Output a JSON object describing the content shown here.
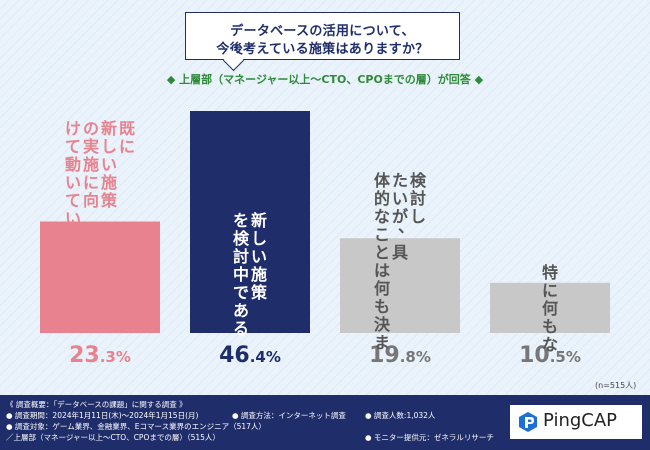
{
  "question": {
    "line1": "データベースの活用について、",
    "line2": "今後考えている施策はありますか？"
  },
  "respondent_label": "◆ 上層部（マネージャー以上〜CTO、CPOまでの層）が回答 ◆",
  "n_note": "(n=515人)",
  "chart_data": {
    "type": "bar",
    "categories": [
      "既に新しい施策の実施に向けて動いている",
      "新しい施策を検討中である",
      "検討したいが、具体的なことは何も決まっていない",
      "特に何もない"
    ],
    "values": [
      23.3,
      46.4,
      19.8,
      10.5
    ],
    "value_labels": [
      "23.3%",
      "46.4%",
      "19.8%",
      "10.5%"
    ],
    "bar_colors": [
      "#e8828e",
      "#1f2d6b",
      "#c8c8c8",
      "#c8c8c8"
    ],
    "label_colors": [
      "#e8828e",
      "#1f2d6b",
      "#777777",
      "#777777"
    ],
    "category_text_colors": [
      "#e8828e",
      "#ffffff",
      "#555555",
      "#555555"
    ],
    "ylim": [
      0,
      46.4
    ],
    "unit": "%"
  },
  "footer": {
    "line1": "《 調査概要：「データベースの課題」に関する調査 》",
    "line2a": "● 調査期間：2024年1月11日(木)〜2024年1月15日(月)",
    "line2b": "● 調査方法：インターネット調査",
    "line2c": "● 調査人数:1,032人",
    "line3a": "● 調査対象：ゲーム業界、金融業界、Eコマース業界のエンジニア（517人）",
    "line4a": "／上層部（マネージャー以上〜CTO、CPOまでの層）（515人）",
    "line4b": "● モニター提供元：ゼネラルリサーチ"
  },
  "logo": {
    "text": "PingCAP",
    "icon": "pingcap-logo-icon"
  }
}
